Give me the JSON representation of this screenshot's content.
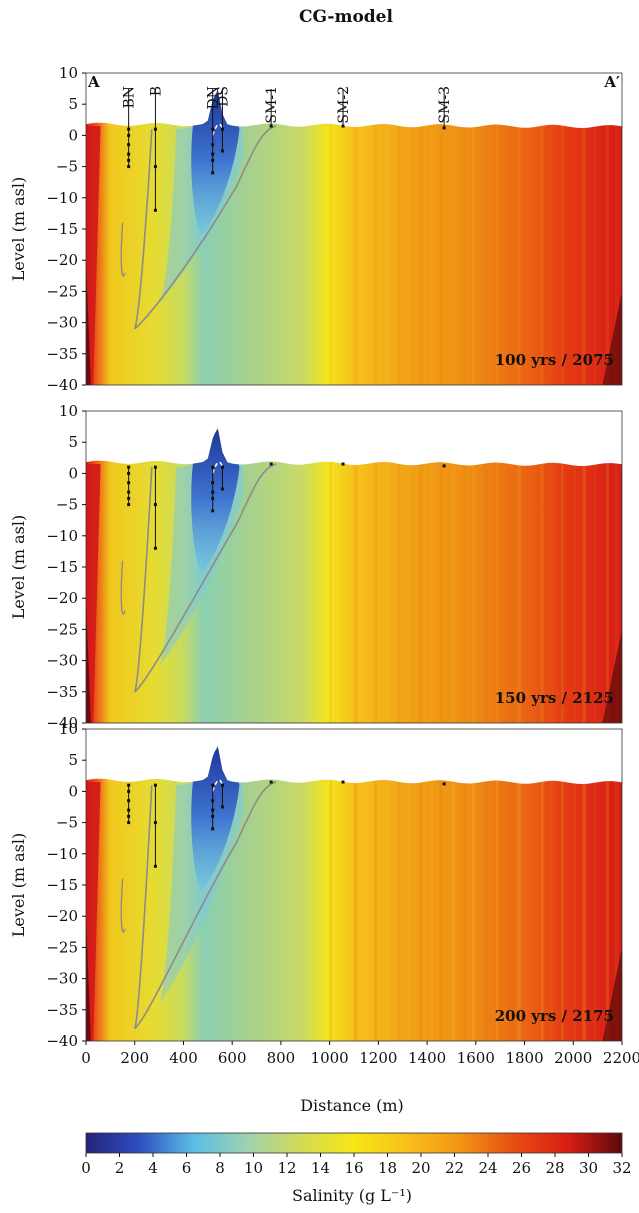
{
  "chart_data": {
    "type": "heatmap",
    "title": "CG-model",
    "xlabel": "Distance (m)",
    "ylabel": "Level (m asl)",
    "xlim": [
      0,
      2200
    ],
    "ylim": [
      -40,
      10
    ],
    "x_ticks": [
      0,
      200,
      400,
      600,
      800,
      1000,
      1200,
      1400,
      1600,
      1800,
      2000,
      2200
    ],
    "y_ticks": [
      10,
      5,
      0,
      -5,
      -10,
      -15,
      -20,
      -25,
      -30,
      -35,
      -40
    ],
    "section_start_label": "A",
    "section_end_label": "A′",
    "wells": [
      {
        "name": "BN",
        "x": 175,
        "screen_depths": [
          1,
          0,
          -1.5,
          -3,
          -4,
          -5
        ]
      },
      {
        "name": "B",
        "x": 285,
        "screen_depths": [
          1,
          -5,
          -12
        ]
      },
      {
        "name": "DN",
        "x": 520,
        "screen_depths": [
          1,
          -1.5,
          -3,
          -4,
          -6
        ]
      },
      {
        "name": "DS",
        "x": 560,
        "screen_depths": [
          1,
          -2.5
        ]
      },
      {
        "name": "SM-1",
        "x": 760,
        "screen_depths": [
          1.5
        ]
      },
      {
        "name": "SM-2",
        "x": 1055,
        "screen_depths": [
          1.5
        ]
      },
      {
        "name": "SM-3",
        "x": 1470,
        "screen_depths": [
          1.2
        ]
      }
    ],
    "panels": [
      {
        "label": "100 yrs / 2075",
        "show_well_labels": true,
        "fresh_lens_depth": -27
      },
      {
        "label": "150 yrs / 2125",
        "show_well_labels": false,
        "fresh_lens_depth": -31
      },
      {
        "label": "200 yrs / 2175",
        "show_well_labels": false,
        "fresh_lens_depth": -34
      }
    ],
    "colorbar": {
      "label": "Salinity (g L⁻¹)",
      "range": [
        0,
        32
      ],
      "ticks": [
        0,
        2,
        4,
        6,
        8,
        10,
        12,
        14,
        16,
        18,
        20,
        22,
        24,
        26,
        28,
        30,
        32
      ]
    },
    "colormap": [
      "#23237a",
      "#2e4fc0",
      "#5bbde6",
      "#9fd0b2",
      "#d2dc53",
      "#f6e616",
      "#f8bf1c",
      "#f29414",
      "#e74d12",
      "#d81d14",
      "#5a0a0a"
    ],
    "contour_color": "#8c8c8c"
  }
}
